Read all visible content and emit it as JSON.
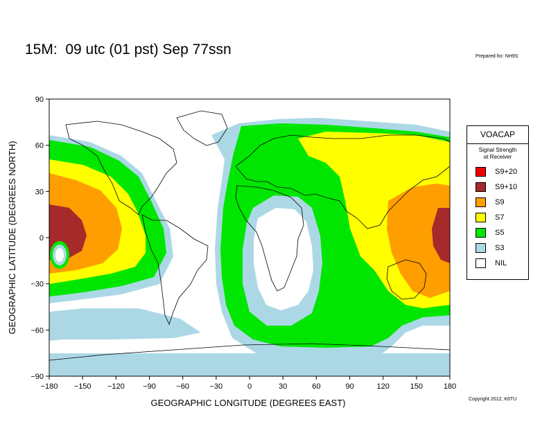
{
  "title": "15M:  09 utc (01 pst) Sep 77ssn",
  "prepared_for": "Prepared for: NH9S",
  "copyright": "Copyright 2012, K6TU",
  "colors": {
    "s9p20": "#f00000",
    "s9p10": "#a52a2a",
    "s9": "#ff9e00",
    "s7": "#ffff00",
    "s5": "#00e600",
    "s3": "#acd8e6",
    "nil": "#ffffff"
  },
  "legend": {
    "title": "VOACAP",
    "subtitle_line1": "Signal Strength",
    "subtitle_line2": "at Receiver",
    "items": [
      {
        "label": "S9+20",
        "color": "#f00000"
      },
      {
        "label": "S9+10",
        "color": "#a52a2a"
      },
      {
        "label": "S9",
        "color": "#ff9e00"
      },
      {
        "label": "S7",
        "color": "#ffff00"
      },
      {
        "label": "S5",
        "color": "#00e600"
      },
      {
        "label": "S3",
        "color": "#acd8e6"
      },
      {
        "label": "NIL",
        "color": "#ffffff"
      }
    ]
  },
  "axes": {
    "x_label": "GEOGRAPHIC LONGITUDE (DEGREES EAST)",
    "y_label": "GEOGRAPHIC LATITUDE (DEGREES NORTH)",
    "x_range": [
      -180,
      180
    ],
    "y_range": [
      -90,
      90
    ],
    "x_ticks": [
      "−180",
      "−150",
      "−120",
      "−90",
      "−60",
      "−30",
      "0",
      "30",
      "60",
      "90",
      "120",
      "150",
      "180"
    ],
    "y_ticks": [
      "90",
      "60",
      "30",
      "0",
      "−30",
      "−60",
      "−90"
    ]
  }
}
